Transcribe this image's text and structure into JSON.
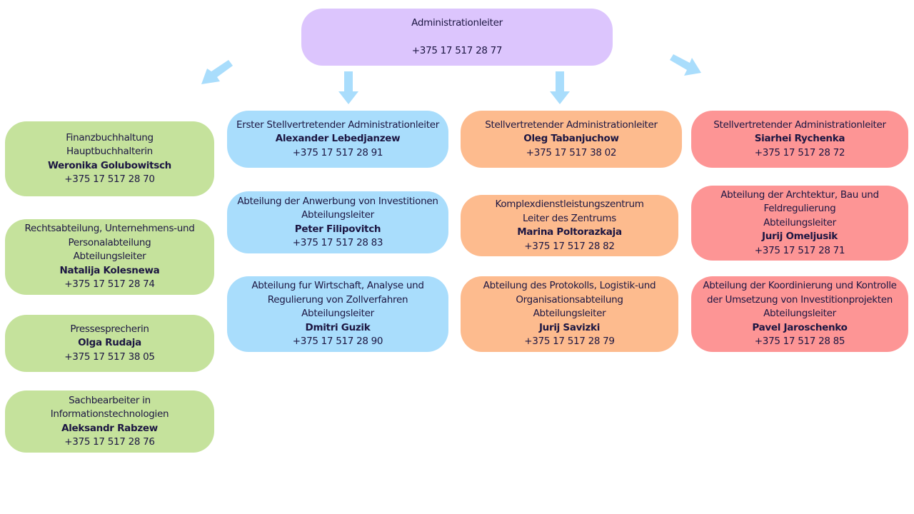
{
  "colors": {
    "head": "#dcc5fd",
    "finance": "#c5e29c",
    "first_deputy": "#a9ddfc",
    "deputy_1": "#fdbb8e",
    "deputy_2": "#fd9595",
    "arrow": "#a9ddfc"
  },
  "head": {
    "title": "Administrationleiter",
    "phone": "+375 17 517 28 77"
  },
  "green": [
    {
      "lines": [
        "Finanzbuchhaltung",
        "Hauptbuchhalterin"
      ],
      "name": "Weronika Golubowitsch",
      "phone": "+375 17 517 28 70"
    },
    {
      "lines": [
        "Rechtsabteilung, Unternehmens-und",
        "Personalabteilung",
        "Abteilungsleiter"
      ],
      "name": "Natalija Kolesnewa",
      "phone": "+375 17 517 28 74"
    },
    {
      "lines": [
        "Pressesprecherin"
      ],
      "name": "Olga Rudaja",
      "phone": "+375 17 517 38 05"
    },
    {
      "lines": [
        "Sachbearbeiter in",
        "Informationstechnologien"
      ],
      "name": "Aleksandr Rabzew",
      "phone": "+375 17 517 28 76"
    }
  ],
  "blue": [
    {
      "lines": [
        "Erster Stellvertretender Administrationleiter"
      ],
      "name": "Alexander Lebedjanzew",
      "phone": "+375 17 517 28 91"
    },
    {
      "lines": [
        "Abteilung der Anwerbung von Investitionen",
        "Abteilungsleiter"
      ],
      "name": "Peter Filipovitch",
      "phone": "+375 17 517 28 83"
    },
    {
      "lines": [
        "Abteilung fur Wirtschaft, Analyse und",
        "Regulierung von Zollverfahren",
        "Abteilungsleiter"
      ],
      "name": "Dmitri Guzik",
      "phone": "+375 17 517 28 90"
    }
  ],
  "orange": [
    {
      "lines": [
        "Stellvertretender Administrationleiter"
      ],
      "name": "Oleg Tabanjuchow",
      "phone": "+375 17 517 38 02"
    },
    {
      "lines": [
        "Komplexdienstleistungszentrum",
        "Leiter des Zentrums"
      ],
      "name": "Marina Poltorazkaja",
      "phone": "+375 17 517 28 82"
    },
    {
      "lines": [
        "Abteilung des Protokolls, Logistik-und",
        "Organisationsabteilung",
        "Abteilungsleiter"
      ],
      "name": "Jurij Savizki",
      "phone": "+375 17 517 28 79"
    }
  ],
  "red": [
    {
      "lines": [
        "Stellvertretender Administrationleiter"
      ],
      "name": "Siarhei Rychenka",
      "phone": "+375 17 517 28 72"
    },
    {
      "lines": [
        "Abteilung der Archtektur, Bau und",
        "Feldregulierung",
        "Abteilungsleiter"
      ],
      "name": "Jurij Omeljusik",
      "phone": "+375 17 517 28 71"
    },
    {
      "lines": [
        "Abteilung der Koordinierung und Kontrolle",
        "der Umsetzung von Investitionprojekten",
        "Abteilungsleiter"
      ],
      "name": "Pavel Jaroschenko",
      "phone": "+375 17 517 28 85"
    }
  ]
}
